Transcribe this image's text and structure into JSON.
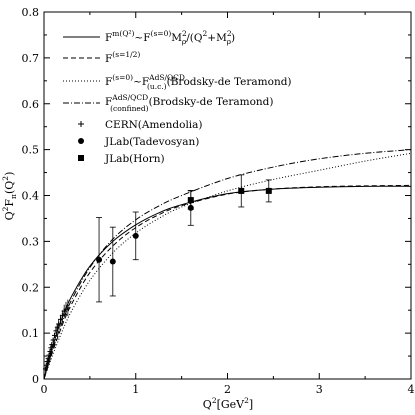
{
  "chart_data": {
    "type": "line",
    "xlabel": {
      "main": "Q",
      "sup": "2",
      "rest": "[GeV",
      "sup2": "2",
      "end": "]"
    },
    "ylabel": {
      "a": "Q",
      "a_sup": "2",
      "b": "F",
      "b_sub": "π",
      "c": "(Q",
      "c_sup": "2",
      "d": ")"
    },
    "xlim": [
      0,
      4
    ],
    "ylim": [
      0,
      0.8
    ],
    "x_ticks": [
      0,
      1,
      2,
      3,
      4
    ],
    "x_tick_labels": [
      "0",
      "1",
      "2",
      "3",
      "4"
    ],
    "y_ticks": [
      0,
      0.1,
      0.2,
      0.3,
      0.4,
      0.5,
      0.6,
      0.7,
      0.8
    ],
    "y_tick_labels": [
      "0",
      "0.1",
      "0.2",
      "0.3",
      "0.4",
      "0.5",
      "0.6",
      "0.7",
      "0.8"
    ],
    "grid": false,
    "legend_position": "top-left",
    "series": [
      {
        "legend": {
          "base": "F",
          "sup": "m(Q²)",
          "tail": "~F",
          "sup2": "(s=0)",
          "tail2": "M",
          "sup3": "2",
          "sub3": "ρ",
          "tail3": "/(Q",
          "sup4": "2",
          "tail4": "+M",
          "sup5": "2",
          "sub5": "ρ",
          "tail5": ")"
        },
        "style": "solid",
        "x": [
          0,
          0.05,
          0.1,
          0.2,
          0.3,
          0.5,
          0.75,
          1.0,
          1.25,
          1.5,
          2.0,
          2.5,
          3.0,
          3.5,
          4.0
        ],
        "y": [
          0,
          0.04,
          0.075,
          0.135,
          0.18,
          0.246,
          0.3,
          0.336,
          0.362,
          0.38,
          0.404,
          0.414,
          0.418,
          0.42,
          0.42
        ]
      },
      {
        "legend": {
          "base": "F",
          "sup": "(s=1/2)"
        },
        "style": "dashed",
        "x": [
          0,
          0.05,
          0.1,
          0.2,
          0.3,
          0.5,
          0.75,
          1.0,
          1.25,
          1.5,
          2.0,
          2.5,
          3.0,
          3.5,
          4.0
        ],
        "y": [
          0,
          0.032,
          0.063,
          0.118,
          0.163,
          0.232,
          0.29,
          0.33,
          0.358,
          0.378,
          0.403,
          0.414,
          0.419,
          0.421,
          0.422
        ]
      },
      {
        "legend": {
          "base": "F",
          "sup": "(s=0)",
          "tail": "~F",
          "sup2": "AdS/QCD",
          "sub2": "(u.c.)",
          "tail2": "(Brodsky-de Teramond)"
        },
        "style": "dotted",
        "x": [
          0,
          0.05,
          0.1,
          0.2,
          0.3,
          0.5,
          0.75,
          1.0,
          1.25,
          1.5,
          2.0,
          2.5,
          3.0,
          3.5,
          4.0
        ],
        "y": [
          0,
          0.028,
          0.055,
          0.105,
          0.148,
          0.215,
          0.275,
          0.318,
          0.35,
          0.375,
          0.41,
          0.435,
          0.455,
          0.475,
          0.492
        ]
      },
      {
        "legend": {
          "base": "F",
          "sup": "AdS/QCD",
          "sub": "(confined)",
          "tail": "(Brodsky-de Teramond)"
        },
        "style": "dashdot",
        "x": [
          0,
          0.05,
          0.1,
          0.2,
          0.3,
          0.5,
          0.75,
          1.0,
          1.25,
          1.5,
          2.0,
          2.5,
          3.0,
          3.5,
          4.0
        ],
        "y": [
          0,
          0.035,
          0.068,
          0.125,
          0.172,
          0.243,
          0.305,
          0.347,
          0.377,
          0.4,
          0.437,
          0.462,
          0.48,
          0.492,
          0.5
        ]
      }
    ],
    "data_sets": [
      {
        "legend": "CERN(Amendolia)",
        "marker": "plus",
        "points": [
          {
            "x": 0.015,
            "y": 0.022,
            "err": 0.004
          },
          {
            "x": 0.025,
            "y": 0.03,
            "err": 0.004
          },
          {
            "x": 0.035,
            "y": 0.038,
            "err": 0.004
          },
          {
            "x": 0.045,
            "y": 0.045,
            "err": 0.004
          },
          {
            "x": 0.055,
            "y": 0.052,
            "err": 0.005
          },
          {
            "x": 0.065,
            "y": 0.06,
            "err": 0.005
          },
          {
            "x": 0.075,
            "y": 0.068,
            "err": 0.005
          },
          {
            "x": 0.085,
            "y": 0.075,
            "err": 0.005
          },
          {
            "x": 0.1,
            "y": 0.085,
            "err": 0.005
          },
          {
            "x": 0.115,
            "y": 0.095,
            "err": 0.006
          },
          {
            "x": 0.13,
            "y": 0.105,
            "err": 0.007
          },
          {
            "x": 0.145,
            "y": 0.113,
            "err": 0.008
          },
          {
            "x": 0.16,
            "y": 0.12,
            "err": 0.009
          },
          {
            "x": 0.18,
            "y": 0.13,
            "err": 0.01
          },
          {
            "x": 0.2,
            "y": 0.138,
            "err": 0.012
          },
          {
            "x": 0.22,
            "y": 0.148,
            "err": 0.014
          },
          {
            "x": 0.24,
            "y": 0.152,
            "err": 0.016
          },
          {
            "x": 0.26,
            "y": 0.155,
            "err": 0.018
          }
        ]
      },
      {
        "legend": "JLab(Tadevosyan)",
        "marker": "circle",
        "points": [
          {
            "x": 0.6,
            "y": 0.26,
            "err": 0.092
          },
          {
            "x": 0.75,
            "y": 0.256,
            "err": 0.075
          },
          {
            "x": 1.0,
            "y": 0.312,
            "err": 0.052
          },
          {
            "x": 1.6,
            "y": 0.373,
            "err": 0.038
          }
        ]
      },
      {
        "legend": "JLab(Horn)",
        "marker": "square",
        "points": [
          {
            "x": 1.6,
            "y": 0.39,
            "err": 0.02
          },
          {
            "x": 2.15,
            "y": 0.41,
            "err": 0.035
          },
          {
            "x": 2.45,
            "y": 0.41,
            "err": 0.024
          }
        ]
      }
    ]
  }
}
